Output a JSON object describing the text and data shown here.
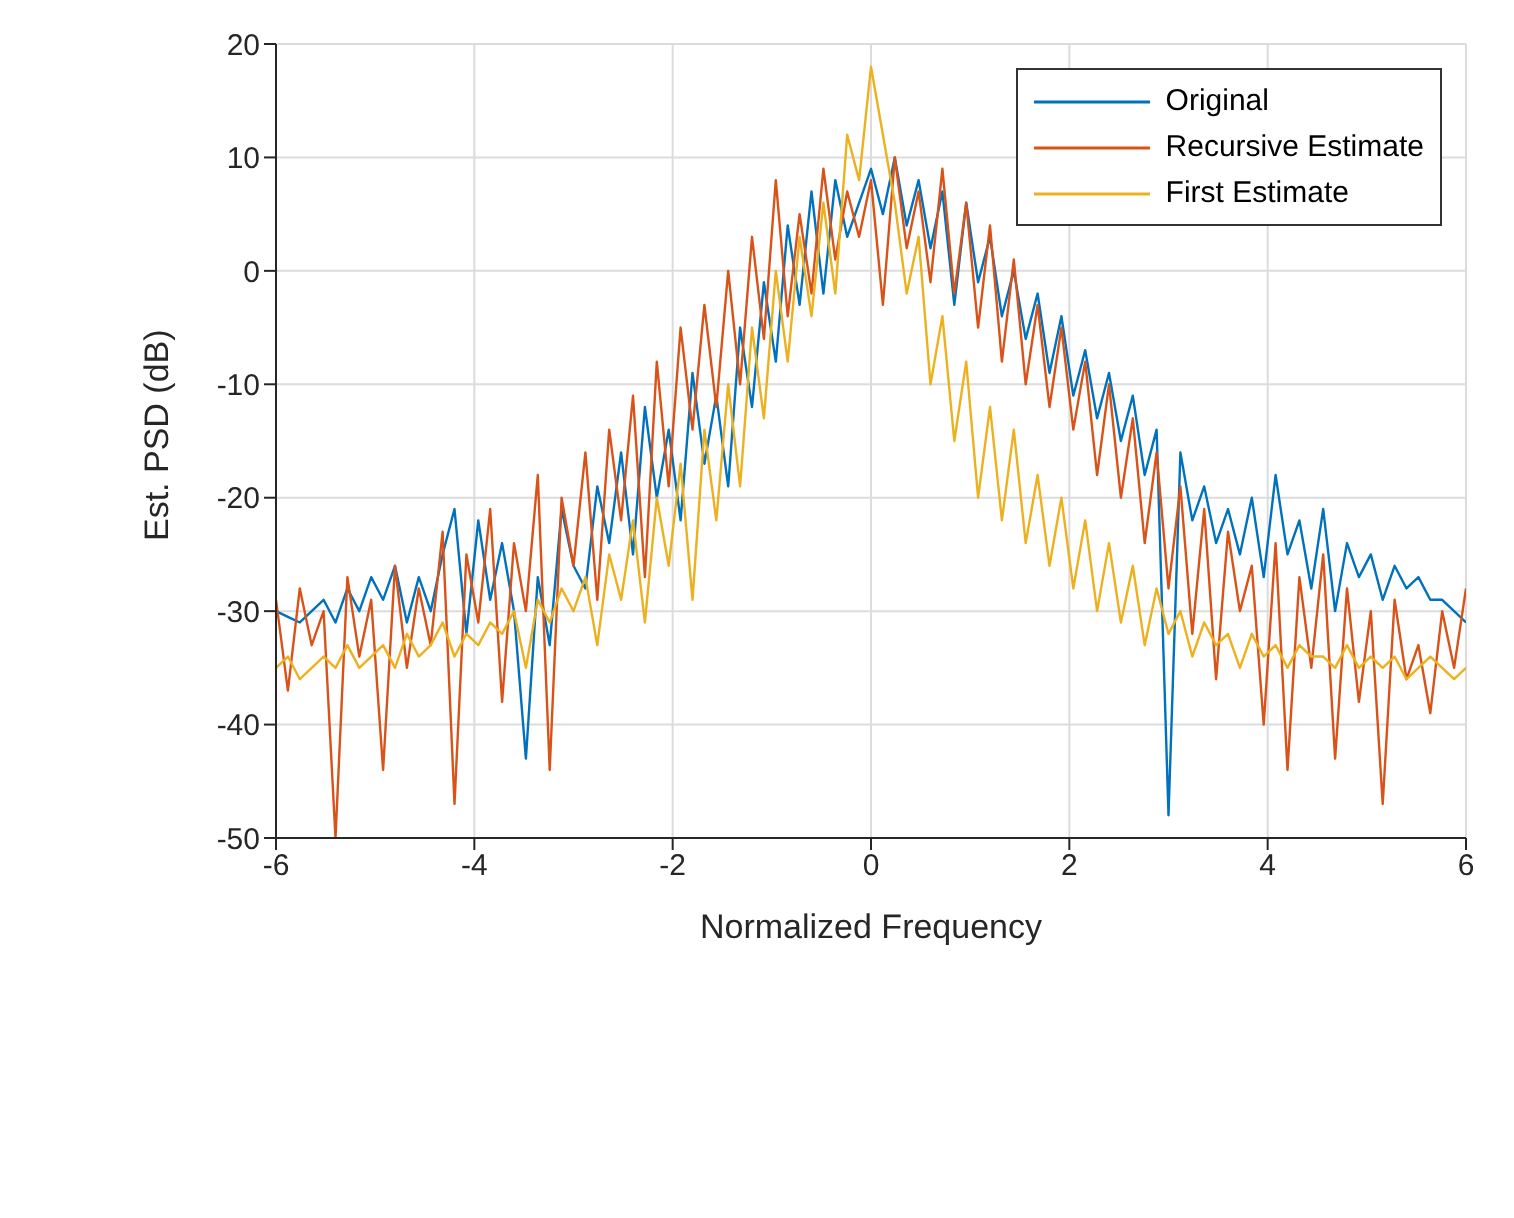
{
  "chart_data": {
    "type": "line",
    "xlabel": "Normalized Frequency",
    "ylabel": "Est. PSD (dB)",
    "x": [
      -6,
      -5.88,
      -5.76,
      -5.64,
      -5.52,
      -5.4,
      -5.28,
      -5.16,
      -5.04,
      -4.92,
      -4.8,
      -4.68,
      -4.56,
      -4.44,
      -4.32,
      -4.2,
      -4.08,
      -3.96,
      -3.84,
      -3.72,
      -3.6,
      -3.48,
      -3.36,
      -3.24,
      -3.12,
      -3,
      -2.88,
      -2.76,
      -2.64,
      -2.52,
      -2.4,
      -2.28,
      -2.16,
      -2.04,
      -1.92,
      -1.8,
      -1.68,
      -1.56,
      -1.44,
      -1.32,
      -1.2,
      -1.08,
      -0.96,
      -0.84,
      -0.72,
      -0.6,
      -0.48,
      -0.36,
      -0.24,
      -0.12,
      0,
      0.12,
      0.24,
      0.36,
      0.48,
      0.6,
      0.72,
      0.84,
      0.96,
      1.08,
      1.2,
      1.32,
      1.44,
      1.56,
      1.68,
      1.8,
      1.92,
      2.04,
      2.16,
      2.28,
      2.4,
      2.52,
      2.64,
      2.76,
      2.88,
      3,
      3.12,
      3.24,
      3.36,
      3.48,
      3.6,
      3.72,
      3.84,
      3.96,
      4.08,
      4.2,
      4.32,
      4.44,
      4.56,
      4.68,
      4.8,
      4.92,
      5.04,
      5.16,
      5.28,
      5.4,
      5.52,
      5.64,
      5.76,
      5.88,
      6
    ],
    "series": [
      {
        "name": "Original",
        "color": "#0072bd",
        "values": [
          -30,
          -30.5,
          -31,
          -30,
          -29,
          -31,
          -28,
          -30,
          -27,
          -29,
          -26,
          -31,
          -27,
          -30,
          -25,
          -21,
          -32,
          -22,
          -29,
          -24,
          -30,
          -43,
          -27,
          -33,
          -21,
          -26,
          -28,
          -19,
          -24,
          -16,
          -25,
          -12,
          -20,
          -14,
          -22,
          -9,
          -17,
          -11,
          -19,
          -5,
          -12,
          -1,
          -8,
          4,
          -3,
          7,
          -2,
          8,
          3,
          6,
          9,
          5,
          10,
          4,
          8,
          2,
          7,
          -3,
          6,
          -1,
          3,
          -4,
          0,
          -6,
          -2,
          -9,
          -4,
          -11,
          -7,
          -13,
          -9,
          -15,
          -11,
          -18,
          -14,
          -48,
          -16,
          -22,
          -19,
          -24,
          -21,
          -25,
          -20,
          -27,
          -18,
          -25,
          -22,
          -28,
          -21,
          -30,
          -24,
          -27,
          -25,
          -29,
          -26,
          -28,
          -27,
          -29,
          -29,
          -30,
          -31
        ]
      },
      {
        "name": "Recursive Estimate",
        "color": "#d95319",
        "values": [
          -29,
          -37,
          -28,
          -33,
          -30,
          -50,
          -27,
          -34,
          -29,
          -44,
          -26,
          -35,
          -28,
          -33,
          -23,
          -47,
          -25,
          -31,
          -21,
          -38,
          -24,
          -30,
          -18,
          -44,
          -20,
          -26,
          -16,
          -29,
          -14,
          -22,
          -11,
          -27,
          -8,
          -19,
          -5,
          -14,
          -3,
          -12,
          0,
          -10,
          3,
          -6,
          8,
          -4,
          5,
          -2,
          9,
          1,
          7,
          3,
          8,
          -3,
          10,
          2,
          7,
          -1,
          9,
          -2,
          6,
          -5,
          4,
          -8,
          1,
          -10,
          -3,
          -12,
          -5,
          -14,
          -8,
          -18,
          -10,
          -20,
          -13,
          -24,
          -16,
          -28,
          -19,
          -32,
          -21,
          -36,
          -23,
          -30,
          -26,
          -40,
          -24,
          -44,
          -27,
          -35,
          -25,
          -43,
          -28,
          -38,
          -30,
          -47,
          -29,
          -36,
          -33,
          -39,
          -30,
          -35,
          -28
        ]
      },
      {
        "name": "First Estimate",
        "color": "#edb120",
        "values": [
          -35,
          -34,
          -36,
          -35,
          -34,
          -35,
          -33,
          -35,
          -34,
          -33,
          -35,
          -32,
          -34,
          -33,
          -31,
          -34,
          -32,
          -33,
          -31,
          -32,
          -30,
          -35,
          -29,
          -31,
          -28,
          -30,
          -27,
          -33,
          -25,
          -29,
          -22,
          -31,
          -20,
          -26,
          -17,
          -29,
          -14,
          -22,
          -10,
          -19,
          -5,
          -13,
          0,
          -8,
          3,
          -4,
          6,
          -2,
          12,
          8,
          18,
          12,
          6,
          -2,
          3,
          -10,
          -4,
          -15,
          -8,
          -20,
          -12,
          -22,
          -14,
          -24,
          -18,
          -26,
          -20,
          -28,
          -22,
          -30,
          -24,
          -31,
          -26,
          -33,
          -28,
          -32,
          -30,
          -34,
          -31,
          -33,
          -32,
          -35,
          -32,
          -34,
          -33,
          -35,
          -33,
          -34,
          -34,
          -35,
          -33,
          -35,
          -34,
          -35,
          -34,
          -36,
          -35,
          -34,
          -35,
          -36,
          -35
        ]
      }
    ],
    "xlim": [
      -6,
      6
    ],
    "xticks": [
      -6,
      -4,
      -2,
      0,
      2,
      4,
      6
    ],
    "ylim": [
      -50,
      20
    ],
    "yticks": [
      -50,
      -40,
      -30,
      -20,
      -10,
      0,
      10,
      20
    ],
    "grid": true,
    "legend": "top right"
  }
}
